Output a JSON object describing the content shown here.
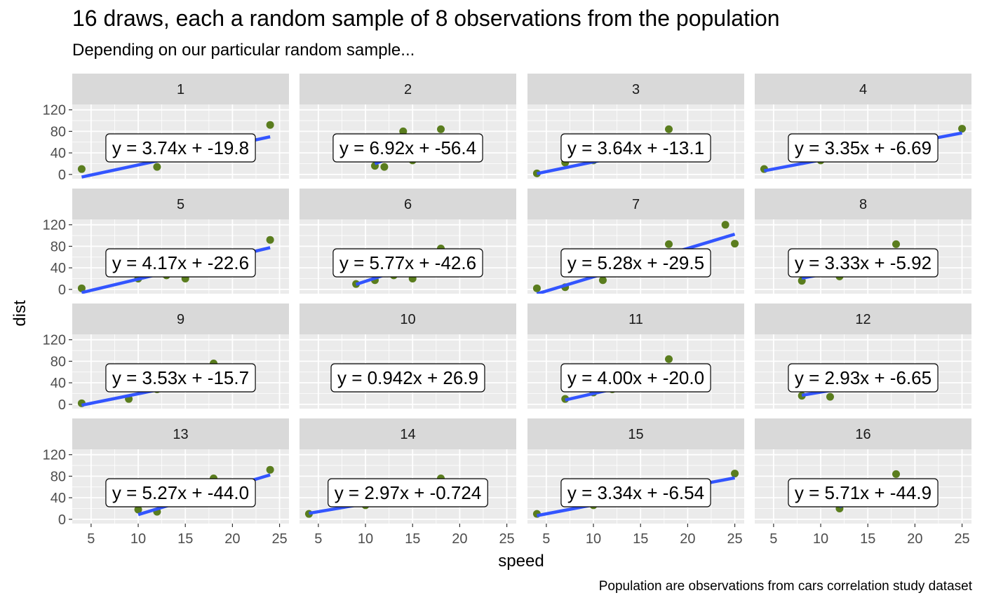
{
  "chart_data": {
    "type": "scatter",
    "title": "16 draws, each a random sample of 8 observations from the population",
    "subtitle": "Depending on our particular random sample...",
    "caption": "Population are observations from cars correlation study dataset",
    "xlabel": "speed",
    "ylabel": "dist",
    "xlim": [
      3,
      26
    ],
    "ylim": [
      -8,
      130
    ],
    "xticks": [
      5,
      10,
      15,
      20,
      25
    ],
    "yticks": [
      0,
      40,
      80,
      120
    ],
    "grid": true,
    "colors": {
      "point": "#5a7d1e",
      "line": "#3355ff",
      "panel_bg": "#ebebeb",
      "strip_bg": "#d9d9d9",
      "grid": "#ffffff"
    },
    "panels": [
      {
        "label": "1",
        "equation": "y = 3.74x + -19.8",
        "slope": 3.74,
        "intercept": -19.8,
        "points": [
          [
            4,
            10
          ],
          [
            12,
            14
          ],
          [
            18,
            42
          ],
          [
            20,
            48
          ],
          [
            22,
            66
          ],
          [
            24,
            92
          ]
        ]
      },
      {
        "label": "2",
        "equation": "y = 6.92x + -56.4",
        "slope": 6.92,
        "intercept": -56.4,
        "points": [
          [
            11,
            16
          ],
          [
            12,
            14
          ],
          [
            14,
            80
          ],
          [
            18,
            84
          ],
          [
            15,
            26
          ],
          [
            16,
            32
          ]
        ]
      },
      {
        "label": "3",
        "equation": "y = 3.64x + -13.1",
        "slope": 3.64,
        "intercept": -13.1,
        "points": [
          [
            4,
            2
          ],
          [
            7,
            22
          ],
          [
            10,
            26
          ],
          [
            13,
            34
          ],
          [
            15,
            40
          ],
          [
            18,
            84
          ]
        ]
      },
      {
        "label": "4",
        "equation": "y = 3.35x + -6.69",
        "slope": 3.35,
        "intercept": -6.69,
        "points": [
          [
            4,
            10
          ],
          [
            10,
            26
          ],
          [
            13,
            34
          ],
          [
            16,
            40
          ],
          [
            19,
            68
          ],
          [
            25,
            85
          ]
        ]
      },
      {
        "label": "5",
        "equation": "y = 4.17x + -22.6",
        "slope": 4.17,
        "intercept": -22.6,
        "points": [
          [
            4,
            2
          ],
          [
            10,
            20
          ],
          [
            13,
            26
          ],
          [
            15,
            20
          ],
          [
            20,
            56
          ],
          [
            24,
            92
          ]
        ]
      },
      {
        "label": "6",
        "equation": "y = 5.77x + -42.6",
        "slope": 5.77,
        "intercept": -42.6,
        "points": [
          [
            9,
            10
          ],
          [
            11,
            17
          ],
          [
            13,
            26
          ],
          [
            15,
            20
          ],
          [
            18,
            76
          ],
          [
            19,
            68
          ]
        ]
      },
      {
        "label": "7",
        "equation": "y = 5.28x + -29.5",
        "slope": 5.28,
        "intercept": -29.5,
        "points": [
          [
            4,
            2
          ],
          [
            7,
            4
          ],
          [
            11,
            17
          ],
          [
            18,
            84
          ],
          [
            24,
            120
          ],
          [
            25,
            85
          ]
        ]
      },
      {
        "label": "8",
        "equation": "y = 3.33x + -5.92",
        "slope": 3.33,
        "intercept": -5.92,
        "points": [
          [
            8,
            16
          ],
          [
            12,
            24
          ],
          [
            14,
            36
          ],
          [
            18,
            84
          ],
          [
            20,
            52
          ],
          [
            22,
            66
          ]
        ]
      },
      {
        "label": "9",
        "equation": "y = 3.53x + -15.7",
        "slope": 3.53,
        "intercept": -15.7,
        "points": [
          [
            4,
            2
          ],
          [
            9,
            10
          ],
          [
            12,
            28
          ],
          [
            14,
            36
          ],
          [
            18,
            76
          ],
          [
            19,
            68
          ]
        ]
      },
      {
        "label": "10",
        "equation": "y = 0.942x + 26.9",
        "slope": 0.942,
        "intercept": 26.9,
        "points": [
          [
            10,
            34
          ],
          [
            12,
            36
          ],
          [
            14,
            40
          ],
          [
            16,
            42
          ],
          [
            19,
            46
          ],
          [
            22,
            48
          ]
        ]
      },
      {
        "label": "11",
        "equation": "y = 4.00x + -20.0",
        "slope": 4.0,
        "intercept": -20.0,
        "points": [
          [
            7,
            10
          ],
          [
            10,
            22
          ],
          [
            12,
            28
          ],
          [
            14,
            34
          ],
          [
            16,
            40
          ],
          [
            18,
            84
          ]
        ]
      },
      {
        "label": "12",
        "equation": "y = 2.93x + -6.65",
        "slope": 2.93,
        "intercept": -6.65,
        "points": [
          [
            8,
            16
          ],
          [
            11,
            14
          ],
          [
            13,
            34
          ],
          [
            16,
            40
          ],
          [
            19,
            46
          ],
          [
            22,
            66
          ]
        ]
      },
      {
        "label": "13",
        "equation": "y = 5.27x + -44.0",
        "slope": 5.27,
        "intercept": -44.0,
        "points": [
          [
            10,
            18
          ],
          [
            12,
            14
          ],
          [
            16,
            32
          ],
          [
            18,
            76
          ],
          [
            20,
            56
          ],
          [
            24,
            92
          ]
        ]
      },
      {
        "label": "14",
        "equation": "y = 2.97x + -0.724",
        "slope": 2.97,
        "intercept": -0.724,
        "points": [
          [
            4,
            10
          ],
          [
            10,
            26
          ],
          [
            13,
            34
          ],
          [
            15,
            40
          ],
          [
            17,
            50
          ],
          [
            18,
            76
          ]
        ]
      },
      {
        "label": "15",
        "equation": "y = 3.34x + -6.54",
        "slope": 3.34,
        "intercept": -6.54,
        "points": [
          [
            4,
            10
          ],
          [
            10,
            26
          ],
          [
            13,
            36
          ],
          [
            17,
            50
          ],
          [
            20,
            60
          ],
          [
            25,
            85
          ]
        ]
      },
      {
        "label": "16",
        "equation": "y = 5.71x + -44.9",
        "slope": 5.71,
        "intercept": -44.9,
        "points": [
          [
            12,
            20
          ],
          [
            14,
            30
          ],
          [
            16,
            40
          ],
          [
            18,
            84
          ],
          [
            19,
            60
          ],
          [
            20,
            64
          ]
        ]
      }
    ]
  }
}
